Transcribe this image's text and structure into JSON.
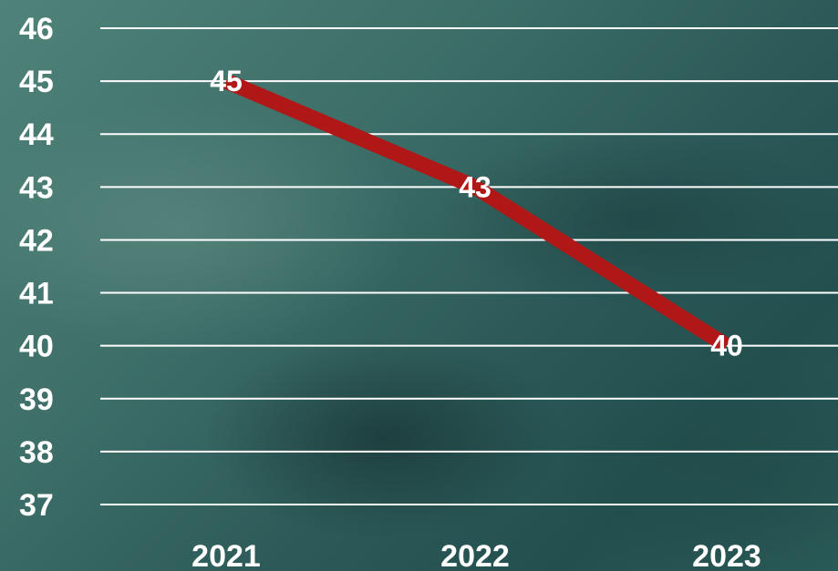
{
  "chart_data": {
    "type": "line",
    "categories": [
      "2021",
      "2022",
      "2023"
    ],
    "series": [
      {
        "values": [
          45,
          43,
          40
        ],
        "data_labels": [
          "45",
          "43",
          "40"
        ],
        "color": "#b01818"
      }
    ],
    "y_ticks": [
      "37",
      "38",
      "39",
      "40",
      "41",
      "42",
      "43",
      "44",
      "45",
      "46"
    ],
    "ylim": [
      37,
      46
    ],
    "grid": true,
    "legend": "none",
    "title": "",
    "xlabel": "",
    "ylabel": ""
  },
  "colors": {
    "line": "#b01818",
    "text": "#ffffff",
    "grid": "#ffffff",
    "background": "#2f5f5c"
  }
}
